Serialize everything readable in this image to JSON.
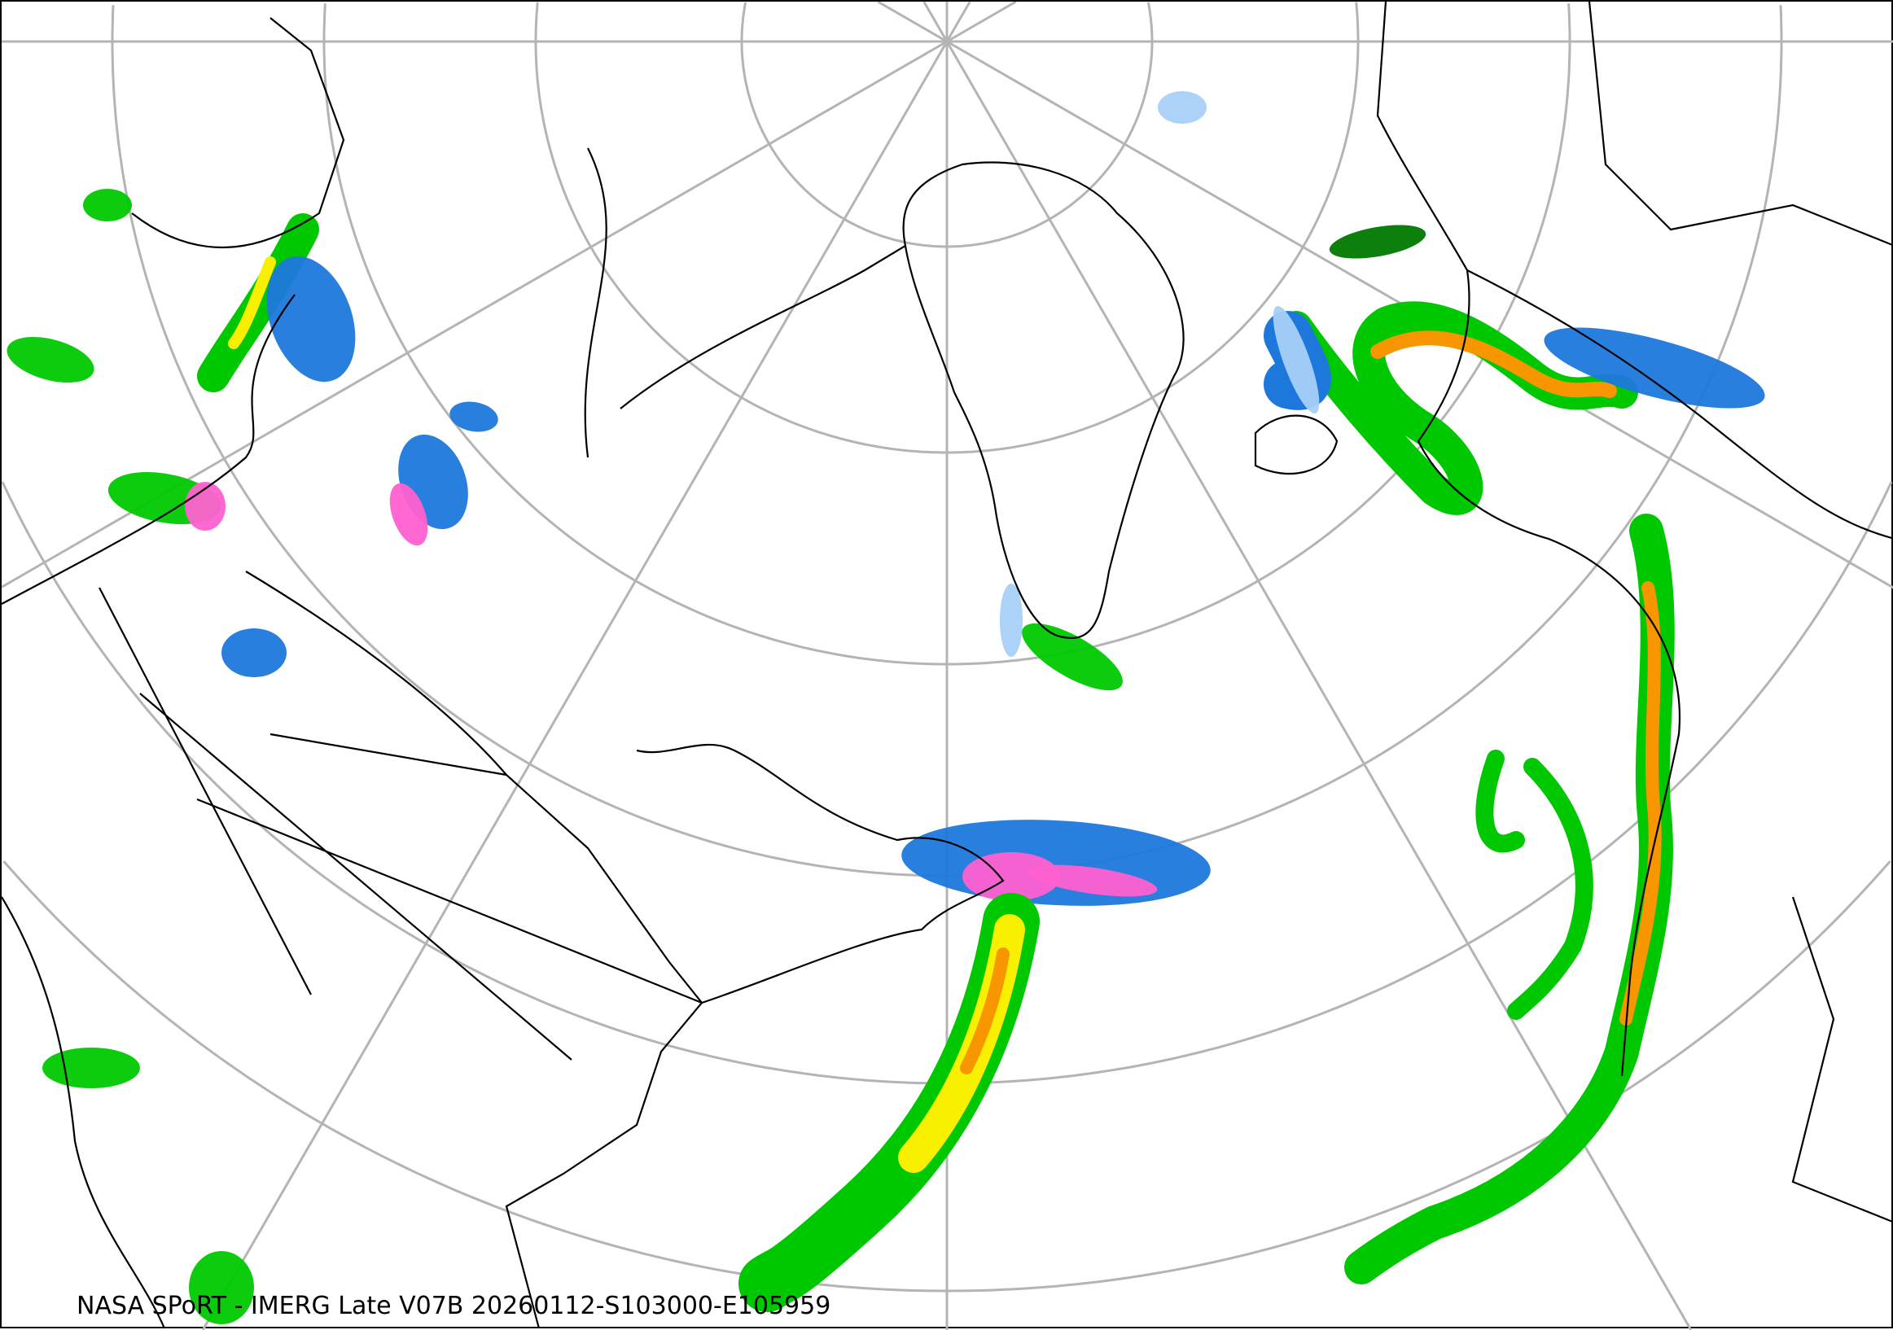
{
  "caption": "NASA SPoRT - IMERG Late V07B 20260112-S103000-E105959",
  "map": {
    "projection": "polar stereographic (north pole)",
    "graticule_color": "#b4b4b4",
    "boundary_color": "#000000",
    "precip_colors": {
      "light": "#a8d0f8",
      "blue": "#1e78dc",
      "green": "#00c800",
      "dark_green": "#007800",
      "light_green": "#a0f000",
      "yellow": "#f8f000",
      "orange": "#f89600",
      "red": "#e61e1e",
      "pink": "#ff60d0"
    }
  }
}
